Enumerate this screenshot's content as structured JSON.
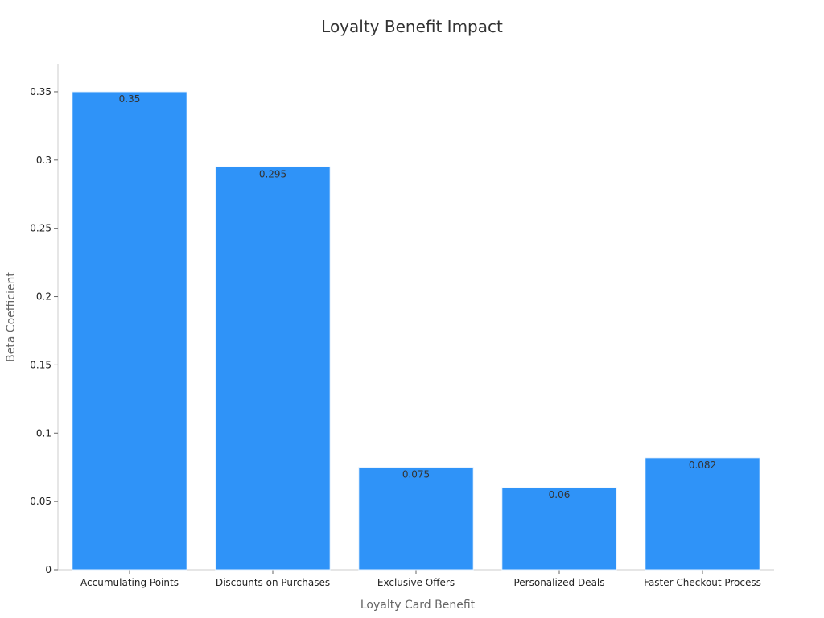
{
  "chart_data": {
    "type": "bar",
    "title": "Loyalty Benefit Impact",
    "xlabel": "Loyalty Card Benefit",
    "ylabel": "Beta Coefficient",
    "categories": [
      "Accumulating Points",
      "Discounts on Purchases",
      "Exclusive Offers",
      "Personalized Deals",
      "Faster Checkout Process"
    ],
    "values": [
      0.35,
      0.295,
      0.075,
      0.06,
      0.082
    ],
    "value_labels": [
      "0.35",
      "0.295",
      "0.075",
      "0.06",
      "0.082"
    ],
    "ylim": [
      0,
      0.37
    ],
    "yticks": [
      0,
      0.05,
      0.1,
      0.15,
      0.2,
      0.25,
      0.3,
      0.35
    ],
    "ytick_labels": [
      "0",
      "0.05",
      "0.1",
      "0.15",
      "0.2",
      "0.25",
      "0.3",
      "0.35"
    ],
    "grid": false,
    "legend": "none",
    "bar_color": "#2f93f8",
    "axis_color": "#cccccc"
  }
}
